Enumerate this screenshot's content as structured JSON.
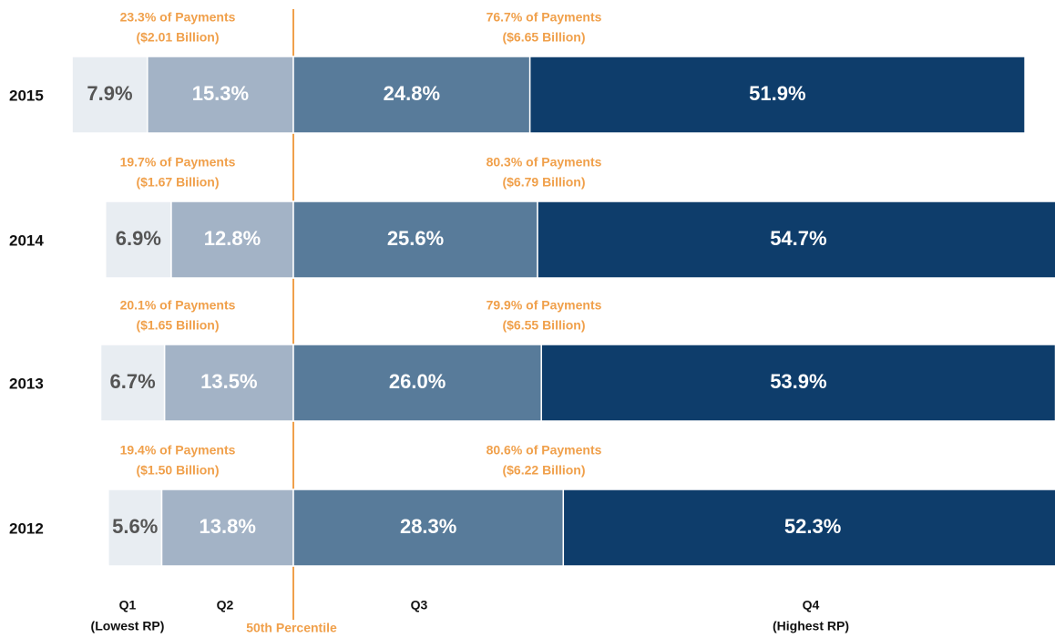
{
  "chart_data": {
    "type": "bar",
    "orientation": "horizontal",
    "stacked": true,
    "categories": [
      "2015",
      "2014",
      "2013",
      "2012"
    ],
    "series": [
      {
        "name": "Q1",
        "subtitle": "(Lowest RP)",
        "color": "#e8edf2",
        "label_color": "#555555",
        "values": [
          7.9,
          6.9,
          6.7,
          5.6
        ],
        "value_labels": [
          "7.9%",
          "6.9%",
          "6.7%",
          "5.6%"
        ]
      },
      {
        "name": "Q2",
        "color": "#a3b3c6",
        "label_color": "#ffffff",
        "values": [
          15.3,
          12.8,
          13.5,
          13.8
        ],
        "value_labels": [
          "15.3%",
          "12.8%",
          "13.5%",
          "13.8%"
        ]
      },
      {
        "name": "Q3",
        "color": "#587b9a",
        "label_color": "#ffffff",
        "values": [
          24.8,
          25.6,
          26.0,
          28.3
        ],
        "value_labels": [
          "24.8%",
          "25.6%",
          "26.0%",
          "28.3%"
        ]
      },
      {
        "name": "Q4",
        "subtitle": "(Highest RP)",
        "color": "#0e3d6b",
        "label_color": "#ffffff",
        "values": [
          51.9,
          54.7,
          53.9,
          52.3
        ],
        "value_labels": [
          "51.9%",
          "54.7%",
          "53.9%",
          "52.3%"
        ]
      }
    ],
    "center_label": "50th Percentile",
    "annotation_color": "#f0a04b",
    "annotations": [
      {
        "left": [
          "23.3% of Payments",
          "($2.01 Billion)"
        ],
        "right": [
          "76.7% of Payments",
          "($6.65 Billion)"
        ]
      },
      {
        "left": [
          "19.7% of Payments",
          "($1.67 Billion)"
        ],
        "right": [
          "80.3% of Payments",
          "($6.79 Billion)"
        ]
      },
      {
        "left": [
          "20.1% of Payments",
          "($1.65 Billion)"
        ],
        "right": [
          "79.9% of Payments",
          "($6.55 Billion)"
        ]
      },
      {
        "left": [
          "19.4% of Payments",
          "($1.50 Billion)"
        ],
        "right": [
          "80.6% of Payments",
          "($6.22 Billion)"
        ]
      }
    ]
  }
}
